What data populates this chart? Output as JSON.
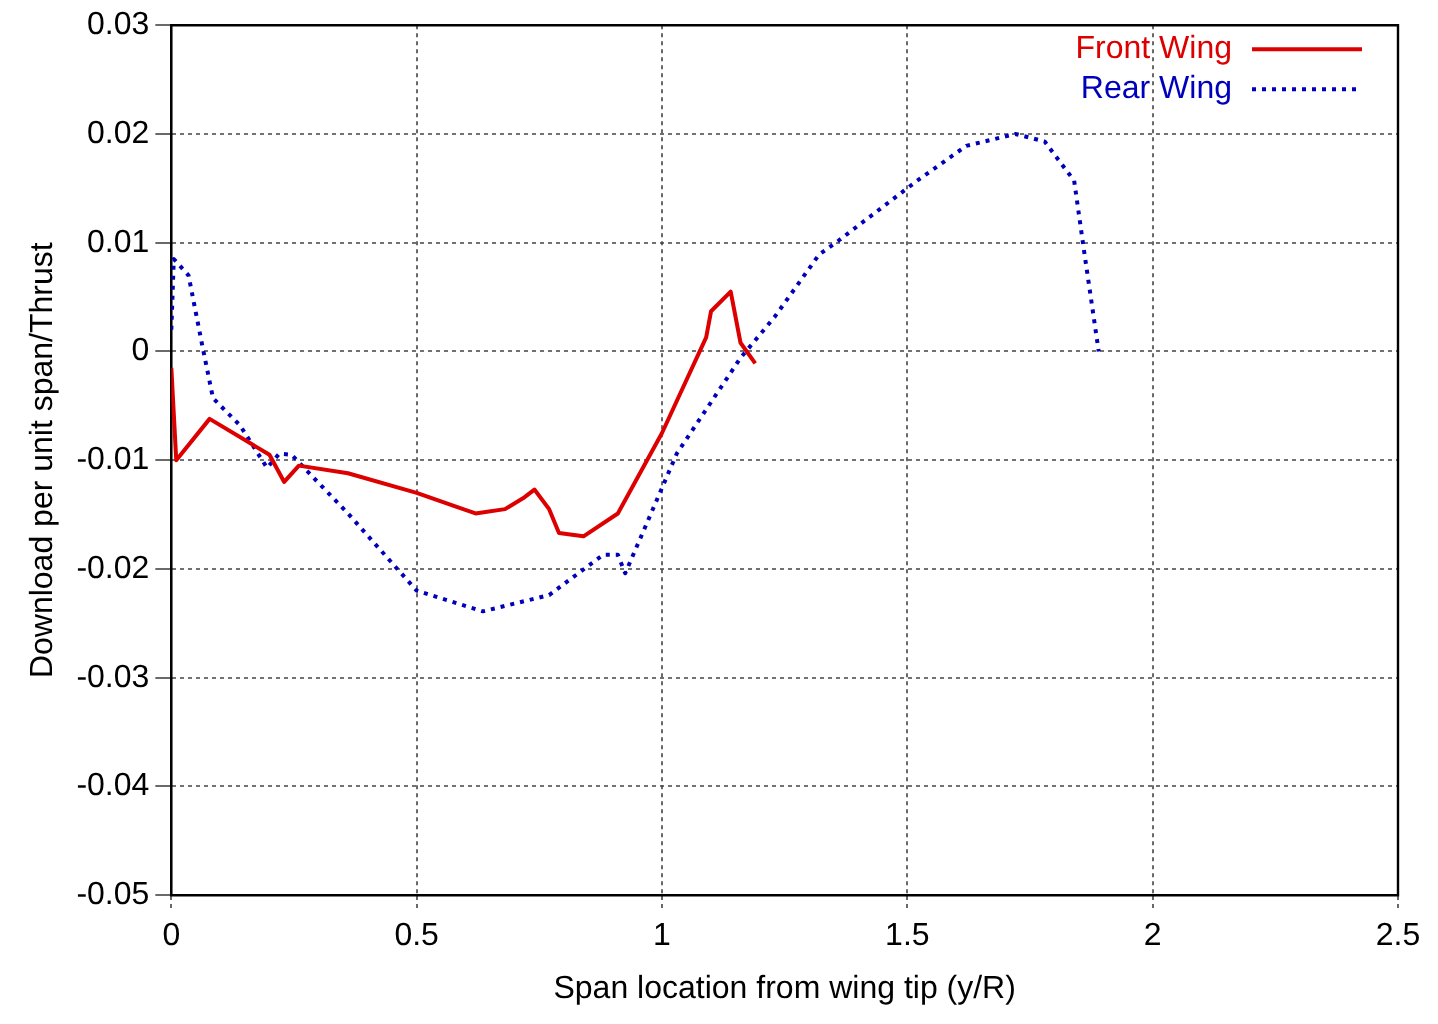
{
  "chart_data": {
    "type": "line",
    "xlabel": "Span location from wing tip (y/R)",
    "ylabel": "Download per unit span/Thrust",
    "xlim": [
      0,
      2.5
    ],
    "xticks": [
      0,
      0.5,
      1,
      1.5,
      2,
      2.5
    ],
    "ylim": [
      -0.05,
      0.03
    ],
    "yticks": [
      -0.05,
      -0.04,
      -0.03,
      -0.02,
      -0.01,
      0,
      0.01,
      0.02,
      0.03
    ],
    "grid": true,
    "legend": "top right",
    "marker": "none",
    "series": [
      {
        "name": "Front Wing",
        "color": "#dd0000",
        "line_style": "solid",
        "x": [
          0,
          0.01,
          0.078,
          0.2,
          0.23,
          0.26,
          0.36,
          0.5,
          0.62,
          0.68,
          0.72,
          0.74,
          0.77,
          0.79,
          0.84,
          0.91,
          1.0,
          1.09,
          1.1,
          1.14,
          1.16,
          1.19
        ],
        "values": [
          -0.0015,
          -0.01,
          -0.0062,
          -0.0095,
          -0.012,
          -0.0105,
          -0.0112,
          -0.013,
          -0.0149,
          -0.0145,
          -0.0134,
          -0.0127,
          -0.0145,
          -0.0167,
          -0.017,
          -0.0149,
          -0.0075,
          0.0013,
          0.0037,
          0.0055,
          0.0008,
          -0.0011
        ]
      },
      {
        "name": "Rear Wing",
        "color": "#0000bb",
        "line_style": "dotted",
        "x": [
          0,
          0.005,
          0.035,
          0.065,
          0.085,
          0.14,
          0.195,
          0.22,
          0.245,
          0.36,
          0.5,
          0.635,
          0.77,
          0.88,
          0.91,
          0.925,
          0.97,
          1.03,
          1.16,
          1.23,
          1.32,
          1.36,
          1.52,
          1.62,
          1.72,
          1.78,
          1.84,
          1.86,
          1.89
        ],
        "values": [
          0.002,
          0.0085,
          0.007,
          0.0001,
          -0.0043,
          -0.0068,
          -0.0107,
          -0.0094,
          -0.0095,
          -0.0149,
          -0.022,
          -0.0239,
          -0.0224,
          -0.0187,
          -0.0187,
          -0.0204,
          -0.0157,
          -0.0094,
          -0.0006,
          0.0032,
          0.0089,
          0.0102,
          0.0157,
          0.0189,
          0.02,
          0.0193,
          0.0157,
          0.0093,
          0
        ]
      }
    ]
  }
}
